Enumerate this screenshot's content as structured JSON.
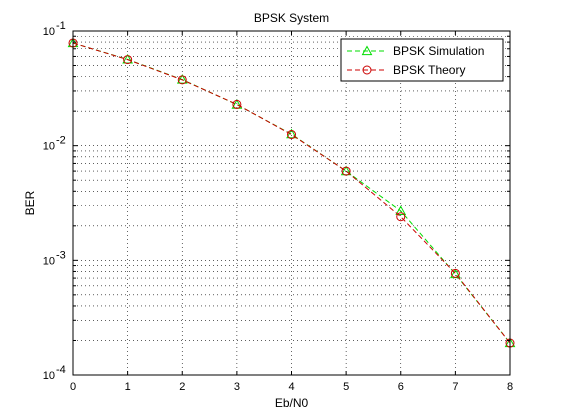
{
  "chart_data": {
    "type": "line",
    "title": "BPSK System",
    "xlabel": "Eb/N0",
    "ylabel": "BER",
    "xlim": [
      0,
      8
    ],
    "ylim": [
      0.0001,
      0.1
    ],
    "yscale": "log",
    "grid": true,
    "legend_position": "top-right",
    "x": [
      0,
      1,
      2,
      3,
      4,
      5,
      6,
      7,
      8
    ],
    "x_ticks": [
      "0",
      "1",
      "2",
      "3",
      "4",
      "5",
      "6",
      "7",
      "8"
    ],
    "y_ticks": [
      {
        "value": 0.1,
        "base": "10",
        "exp": "-1"
      },
      {
        "value": 0.01,
        "base": "10",
        "exp": "-2"
      },
      {
        "value": 0.001,
        "base": "10",
        "exp": "-3"
      },
      {
        "value": 0.0001,
        "base": "10",
        "exp": "-4"
      }
    ],
    "series": [
      {
        "name": "BPSK Simulation",
        "color": "#00dd00",
        "line_style": "dashed",
        "marker": "triangle",
        "values": [
          0.0786,
          0.0565,
          0.0377,
          0.0228,
          0.0126,
          0.006,
          0.0027,
          0.00076,
          0.00019
        ]
      },
      {
        "name": "BPSK Theory",
        "color": "#cc0000",
        "line_style": "dashed",
        "marker": "circle",
        "values": [
          0.0786,
          0.0563,
          0.0375,
          0.0229,
          0.0125,
          0.006,
          0.0024,
          0.00077,
          0.00019
        ]
      }
    ]
  }
}
